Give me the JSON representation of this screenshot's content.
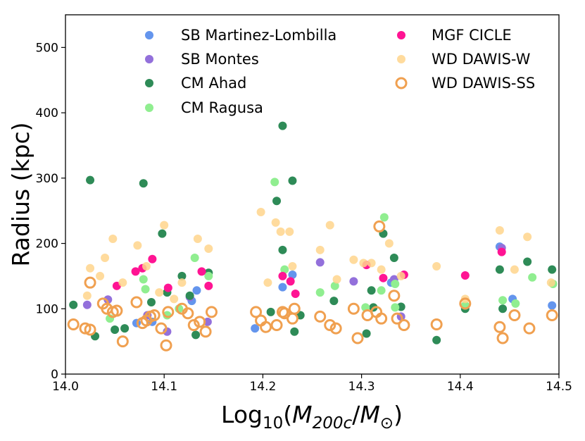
{
  "chart_data": {
    "type": "scatter",
    "title": "",
    "xlabel": {
      "prefix": "Log",
      "sub": "10",
      "open": "(",
      "m1": "M",
      "sub1": "200c",
      "slash": "/",
      "m2": "M",
      "sub2": "⊙",
      "close": ")"
    },
    "ylabel": "Radius (kpc)",
    "xlim": [
      14.0,
      14.5
    ],
    "ylim": [
      0,
      550
    ],
    "xticks": [
      "14.0",
      "14.1",
      "14.2",
      "14.3",
      "14.4",
      "14.5"
    ],
    "yticks": [
      "0",
      "100",
      "200",
      "300",
      "400",
      "500"
    ],
    "legend_position": "top",
    "series": [
      {
        "name": "SB Martinez-Lombilla",
        "color": "#6495ED",
        "marker": "filled",
        "alpha": 1.0,
        "x": [
          14.072,
          14.088,
          14.128,
          14.133,
          14.192,
          14.22,
          14.23,
          14.33,
          14.453,
          14.44,
          14.493
        ],
        "y": [
          78,
          80,
          112,
          128,
          70,
          133,
          152,
          140,
          115,
          195,
          105
        ]
      },
      {
        "name": "SB Montes",
        "color": "#9370DB",
        "marker": "filled",
        "alpha": 1.0,
        "x": [
          14.022,
          14.043,
          14.083,
          14.103,
          14.126,
          14.144,
          14.258,
          14.292,
          14.333,
          14.34,
          14.442
        ],
        "y": [
          106,
          114,
          90,
          65,
          118,
          80,
          171,
          142,
          145,
          88,
          193
        ]
      },
      {
        "name": "CM Ahad",
        "color": "#2E8B57",
        "marker": "filled",
        "alpha": 1.0,
        "x": [
          14.025,
          14.079,
          14.098,
          14.103,
          14.118,
          14.126,
          14.145,
          14.22,
          14.214,
          14.23,
          14.22,
          14.238,
          14.305,
          14.312,
          14.322,
          14.376,
          14.405,
          14.44,
          14.443,
          14.468,
          14.493,
          14.03,
          14.05,
          14.06,
          14.087,
          14.132,
          14.208,
          14.232,
          14.272,
          14.31,
          14.333,
          14.34,
          14.008
        ],
        "y": [
          297,
          292,
          215,
          125,
          150,
          120,
          155,
          380,
          265,
          296,
          190,
          90,
          62,
          102,
          215,
          52,
          100,
          160,
          100,
          172,
          160,
          58,
          68,
          70,
          110,
          60,
          95,
          65,
          112,
          128,
          178,
          103,
          106
        ]
      },
      {
        "name": "CM Ragusa",
        "color": "#90EE90",
        "marker": "filled",
        "alpha": 1.0,
        "x": [
          14.079,
          14.081,
          14.115,
          14.131,
          14.145,
          14.212,
          14.222,
          14.258,
          14.273,
          14.304,
          14.32,
          14.323,
          14.334,
          14.334,
          14.405,
          14.443,
          14.456,
          14.473,
          14.494,
          14.103,
          14.045
        ],
        "y": [
          145,
          130,
          100,
          178,
          150,
          294,
          160,
          125,
          135,
          102,
          128,
          240,
          102,
          138,
          105,
          113,
          108,
          148,
          138,
          90,
          85
        ]
      },
      {
        "name": "MGF CICLE",
        "color": "#FF1493",
        "marker": "filled",
        "alpha": 1.0,
        "x": [
          14.071,
          14.078,
          14.088,
          14.104,
          14.138,
          14.145,
          14.22,
          14.228,
          14.233,
          14.305,
          14.322,
          14.343,
          14.405,
          14.442,
          14.052
        ],
        "y": [
          157,
          162,
          176,
          132,
          157,
          135,
          150,
          142,
          123,
          167,
          147,
          152,
          151,
          187,
          135
        ]
      },
      {
        "name": "WD DAWIS-W",
        "color": "#FFD58C",
        "marker": "filled",
        "alpha": 0.85,
        "x": [
          14.025,
          14.04,
          14.048,
          14.073,
          14.082,
          14.1,
          14.118,
          14.134,
          14.145,
          14.198,
          14.213,
          14.218,
          14.227,
          14.258,
          14.268,
          14.292,
          14.302,
          14.32,
          14.34,
          14.376,
          14.405,
          14.44,
          14.455,
          14.468,
          14.492,
          14.022,
          14.035,
          14.058,
          14.095,
          14.11,
          14.205,
          14.23,
          14.275,
          14.31,
          14.328
        ],
        "y": [
          162,
          178,
          207,
          197,
          165,
          228,
          140,
          207,
          192,
          248,
          232,
          218,
          218,
          190,
          228,
          175,
          170,
          160,
          150,
          165,
          115,
          220,
          160,
          210,
          140,
          120,
          150,
          140,
          125,
          115,
          140,
          165,
          145,
          170,
          200
        ]
      },
      {
        "name": "WD DAWIS-SS",
        "color": "#F0A050",
        "marker": "open",
        "alpha": 1.0,
        "x": [
          14.008,
          14.02,
          14.025,
          14.025,
          14.038,
          14.042,
          14.048,
          14.052,
          14.058,
          14.072,
          14.078,
          14.082,
          14.086,
          14.09,
          14.097,
          14.102,
          14.104,
          14.118,
          14.124,
          14.13,
          14.136,
          14.142,
          14.148,
          14.193,
          14.198,
          14.203,
          14.214,
          14.222,
          14.23,
          14.232,
          14.258,
          14.268,
          14.274,
          14.292,
          14.296,
          14.306,
          14.315,
          14.32,
          14.333,
          14.336,
          14.343,
          14.376,
          14.405,
          14.44,
          14.443,
          14.455,
          14.47,
          14.493,
          14.318,
          14.22
        ],
        "y": [
          76,
          70,
          68,
          140,
          108,
          100,
          95,
          97,
          50,
          110,
          78,
          82,
          88,
          90,
          70,
          44,
          95,
          100,
          93,
          75,
          80,
          65,
          95,
          95,
          82,
          72,
          75,
          93,
          85,
          100,
          88,
          75,
          70,
          100,
          55,
          90,
          95,
          85,
          120,
          85,
          75,
          76,
          108,
          72,
          55,
          90,
          70,
          90,
          226,
          95
        ]
      }
    ]
  }
}
